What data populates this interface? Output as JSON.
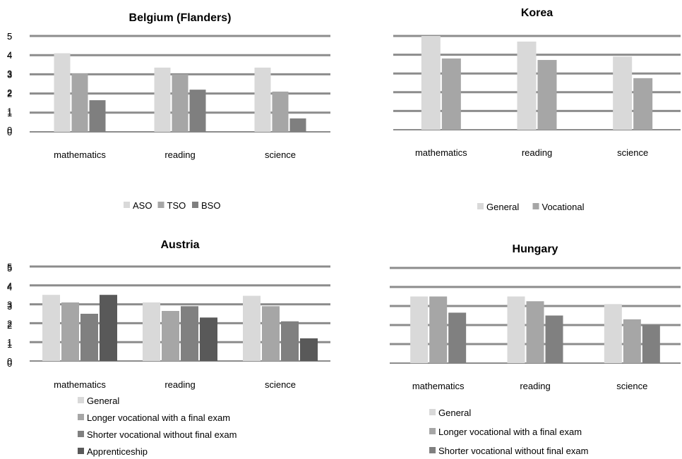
{
  "chart_data": [
    {
      "type": "bar",
      "title": "Belgium (Flanders)",
      "categories": [
        "mathematics",
        "reading",
        "science"
      ],
      "yticks": [
        "0",
        "1",
        "2",
        "3",
        "4",
        "5"
      ],
      "ylim": [
        0,
        5
      ],
      "grid": true,
      "legend_position": "bottom",
      "legend_layout": "row",
      "series": [
        {
          "name": "ASO",
          "values": [
            4.1,
            3.35,
            3.35
          ],
          "color": "#d9d9d9"
        },
        {
          "name": "TSO",
          "values": [
            3.05,
            3.0,
            2.1
          ],
          "color": "#a6a6a6"
        },
        {
          "name": "BSO",
          "values": [
            1.65,
            2.2,
            0.7
          ],
          "color": "#7f7f7f"
        }
      ]
    },
    {
      "type": "bar",
      "title": "Korea",
      "categories": [
        "mathematics",
        "reading",
        "science"
      ],
      "yticks": [
        "0",
        "1",
        "2",
        "3",
        "4",
        "5"
      ],
      "ylim": [
        0,
        5
      ],
      "grid": true,
      "legend_position": "bottom",
      "legend_layout": "row",
      "series": [
        {
          "name": "General",
          "values": [
            5.0,
            4.7,
            3.9
          ],
          "color": "#d9d9d9"
        },
        {
          "name": "Vocational",
          "values": [
            3.8,
            3.72,
            2.75
          ],
          "color": "#a6a6a6"
        }
      ]
    },
    {
      "type": "bar",
      "title": "Austria",
      "categories": [
        "mathematics",
        "reading",
        "science"
      ],
      "yticks": [
        "0",
        "1",
        "2",
        "3",
        "4",
        "5"
      ],
      "ylim": [
        0,
        5
      ],
      "grid": true,
      "legend_position": "bottom",
      "legend_layout": "column",
      "series": [
        {
          "name": "General",
          "values": [
            3.5,
            3.1,
            3.45
          ],
          "color": "#d9d9d9"
        },
        {
          "name": "Longer vocational with a final exam",
          "values": [
            3.1,
            2.65,
            2.9
          ],
          "color": "#a6a6a6"
        },
        {
          "name": "Shorter vocational without final exam",
          "values": [
            2.5,
            2.9,
            2.1
          ],
          "color": "#808080"
        },
        {
          "name": "Apprenticeship",
          "values": [
            3.5,
            2.3,
            1.2
          ],
          "color": "#595959"
        }
      ]
    },
    {
      "type": "bar",
      "title": "Hungary",
      "categories": [
        "mathematics",
        "reading",
        "science"
      ],
      "yticks": [
        "0",
        "1",
        "2",
        "3",
        "4",
        "5"
      ],
      "ylim": [
        0,
        5
      ],
      "grid": true,
      "legend_position": "bottom",
      "legend_layout": "column",
      "series": [
        {
          "name": "General",
          "values": [
            3.5,
            3.5,
            3.1
          ],
          "color": "#d9d9d9"
        },
        {
          "name": "Longer vocational with a final exam",
          "values": [
            3.5,
            3.25,
            2.3
          ],
          "color": "#a6a6a6"
        },
        {
          "name": "Shorter vocational without final exam",
          "values": [
            2.65,
            2.5,
            2.0
          ],
          "color": "#808080"
        }
      ]
    }
  ]
}
